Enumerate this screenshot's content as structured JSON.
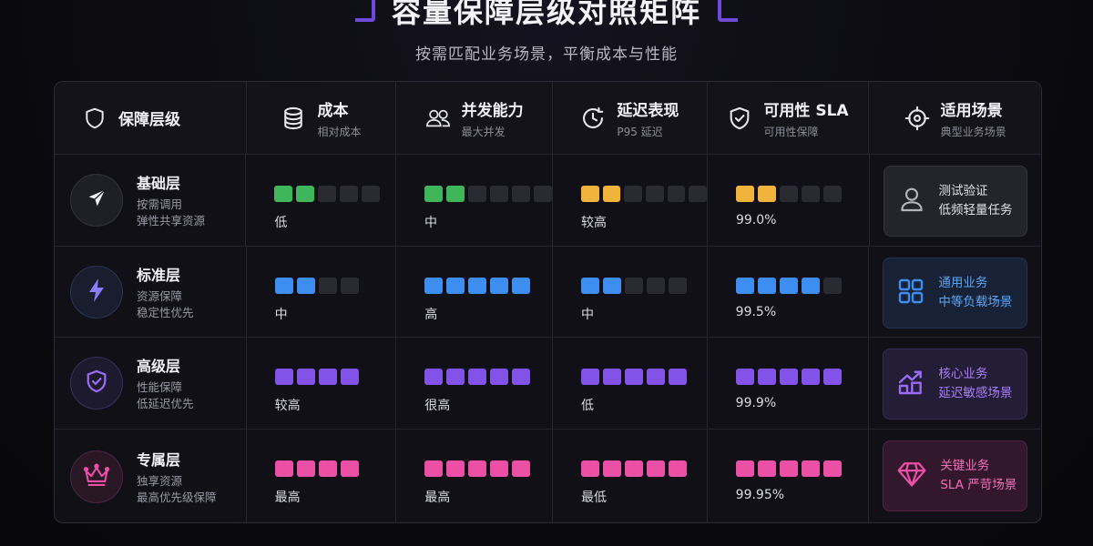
{
  "header": {
    "title": "容量保障层级对照矩阵",
    "subtitle": "按需匹配业务场景，平衡成本与性能"
  },
  "columns": [
    {
      "main": "保障层级",
      "sub": ""
    },
    {
      "main": "成本",
      "sub": "相对成本"
    },
    {
      "main": "并发能力",
      "sub": "最大并发"
    },
    {
      "main": "延迟表现",
      "sub": "P95 延迟"
    },
    {
      "main": "可用性 SLA",
      "sub": "可用性保障"
    },
    {
      "main": "适用场景",
      "sub": "典型业务场景"
    }
  ],
  "colors": {
    "green": "#3fb65a",
    "yellow": "#f0b43c",
    "blue": "#3d8ef0",
    "purple": "#8352e8",
    "pink": "#ec4fa6",
    "empty": "#2a2a32"
  },
  "rows": [
    {
      "name": "基础层",
      "desc1": "按需调用",
      "desc2": "弹性共享资源",
      "icon": "paper-plane-icon",
      "metrics": [
        {
          "level": 2,
          "total": 5,
          "color": "#3fb65a",
          "label": "低"
        },
        {
          "level": 2,
          "total": 6,
          "color": "#3fb65a",
          "label": "中"
        },
        {
          "level": 2,
          "total": 6,
          "color": "#f0b43c",
          "label": "较高"
        },
        {
          "level": 2,
          "total": 5,
          "color": "#f0b43c",
          "label": "99.0%"
        }
      ],
      "scene": {
        "line1": "测试验证",
        "line2": "低频轻量任务",
        "icon": "user-icon"
      }
    },
    {
      "name": "标准层",
      "desc1": "资源保障",
      "desc2": "稳定性优先",
      "icon": "lightning-icon",
      "metrics": [
        {
          "level": 2,
          "total": 4,
          "color": "#3d8ef0",
          "label": "中"
        },
        {
          "level": 5,
          "total": 5,
          "color": "#3d8ef0",
          "label": "高"
        },
        {
          "level": 2,
          "total": 5,
          "color": "#3d8ef0",
          "label": "中"
        },
        {
          "level": 4,
          "total": 5,
          "color": "#3d8ef0",
          "label": "99.5%"
        }
      ],
      "scene": {
        "line1": "通用业务",
        "line2": "中等负载场景",
        "icon": "grid-icon"
      }
    },
    {
      "name": "高级层",
      "desc1": "性能保障",
      "desc2": "低延迟优先",
      "icon": "shield-check-icon",
      "metrics": [
        {
          "level": 4,
          "total": 4,
          "color": "#8352e8",
          "label": "较高"
        },
        {
          "level": 5,
          "total": 5,
          "color": "#8352e8",
          "label": "很高"
        },
        {
          "level": 5,
          "total": 5,
          "color": "#8352e8",
          "label": "低"
        },
        {
          "level": 5,
          "total": 5,
          "color": "#8352e8",
          "label": "99.9%"
        }
      ],
      "scene": {
        "line1": "核心业务",
        "line2": "延迟敏感场景",
        "icon": "trend-chart-icon"
      }
    },
    {
      "name": "专属层",
      "desc1": "独享资源",
      "desc2": "最高优先级保障",
      "icon": "crown-icon",
      "metrics": [
        {
          "level": 4,
          "total": 4,
          "color": "#ec4fa6",
          "label": "最高"
        },
        {
          "level": 5,
          "total": 5,
          "color": "#ec4fa6",
          "label": "最高"
        },
        {
          "level": 5,
          "total": 5,
          "color": "#ec4fa6",
          "label": "最低"
        },
        {
          "level": 5,
          "total": 5,
          "color": "#ec4fa6",
          "label": "99.95%"
        }
      ],
      "scene": {
        "line1": "关键业务",
        "line2": "SLA 严苛场景",
        "icon": "diamond-icon"
      }
    }
  ]
}
